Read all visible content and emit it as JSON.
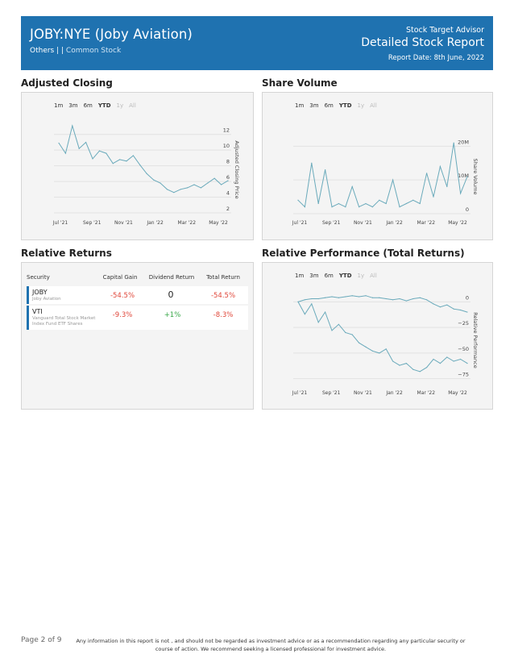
{
  "header": {
    "ticker": "JOBY:NYE (Joby Aviation)",
    "category": "Others",
    "separator": " | | ",
    "type": "Common Stock",
    "brand": "Stock Target Advisor",
    "title": "Detailed Stock Report",
    "date": "Report Date: 8th June, 2022"
  },
  "sections": {
    "adjusted_closing": "Adjusted Closing",
    "share_volume": "Share Volume",
    "relative_returns": "Relative Returns",
    "relative_performance": "Relative Performance (Total Returns)"
  },
  "range_buttons": [
    {
      "label": "1m",
      "state": "normal"
    },
    {
      "label": "3m",
      "state": "normal"
    },
    {
      "label": "6m",
      "state": "normal"
    },
    {
      "label": "YTD",
      "state": "selected"
    },
    {
      "label": "1y",
      "state": "disabled"
    },
    {
      "label": "All",
      "state": "disabled"
    }
  ],
  "returns_table": {
    "headers": [
      "Security",
      "Capital Gain",
      "Dividend Return",
      "Total Return"
    ],
    "rows": [
      {
        "symbol": "JOBY",
        "name": "Joby Aviation",
        "capital_gain": "-54.5%",
        "dividend_return": "0",
        "total_return": "-54.5%"
      },
      {
        "symbol": "VTI",
        "name": "Vanguard Total Stock Market Index Fund ETF Shares",
        "capital_gain": "-9.3%",
        "dividend_return": "+1%",
        "total_return": "-8.3%"
      }
    ]
  },
  "chart_data": [
    {
      "type": "line",
      "title": "Adjusted Closing",
      "ylabel": "Adjusted Closing Price",
      "xticks": [
        "Jul '21",
        "Sep '21",
        "Nov '21",
        "Jan '22",
        "Mar '22",
        "May '22"
      ],
      "yticks": [
        "2",
        "4",
        "6",
        "8",
        "10",
        "12"
      ],
      "ylim": [
        2,
        13
      ],
      "color": "#6aaabb",
      "x": [
        0,
        2,
        4,
        6,
        8,
        10,
        12,
        14,
        16,
        18,
        20,
        22,
        24,
        26,
        28,
        30,
        32,
        34,
        36,
        38,
        40,
        42,
        44,
        46,
        48,
        50
      ],
      "values": [
        10.9,
        9.6,
        13.1,
        10.2,
        11.0,
        8.9,
        9.9,
        9.6,
        8.3,
        8.8,
        8.6,
        9.3,
        8.1,
        7.0,
        6.2,
        5.8,
        5.0,
        4.6,
        5.0,
        5.2,
        5.6,
        5.2,
        5.8,
        6.4,
        5.6,
        6.1
      ]
    },
    {
      "type": "line",
      "title": "Share Volume",
      "ylabel": "Share Volume",
      "xticks": [
        "Jul '21",
        "Sep '21",
        "Nov '21",
        "Jan '22",
        "Mar '22",
        "May '22"
      ],
      "yticks": [
        "0",
        "10M",
        "20M"
      ],
      "ylim": [
        0,
        22
      ],
      "color": "#6aaabb",
      "x": [
        0,
        2,
        4,
        6,
        8,
        10,
        12,
        14,
        16,
        18,
        20,
        22,
        24,
        26,
        28,
        30,
        32,
        34,
        36,
        38,
        40,
        42,
        44,
        46,
        48,
        50
      ],
      "values": [
        4,
        2,
        15,
        3,
        13,
        2,
        3,
        2,
        8,
        2,
        3,
        2,
        4,
        3,
        10,
        2,
        3,
        4,
        3,
        12,
        5,
        14,
        8,
        21,
        6,
        11
      ]
    },
    {
      "type": "line",
      "title": "Relative Performance (Total Returns)",
      "ylabel": "Relative Performance",
      "xticks": [
        "Jul '21",
        "Sep '21",
        "Nov '21",
        "Jan '22",
        "Mar '22",
        "May '22"
      ],
      "yticks": [
        "0",
        "−25",
        "−50",
        "−75"
      ],
      "ylim": [
        -80,
        5
      ],
      "color": "#6aaabb",
      "x": [
        0,
        2,
        4,
        6,
        8,
        10,
        12,
        14,
        16,
        18,
        20,
        22,
        24,
        26,
        28,
        30,
        32,
        34,
        36,
        38,
        40,
        42,
        44,
        46,
        48,
        50
      ],
      "series": [
        {
          "name": "JOBY",
          "values": [
            0,
            -12,
            -2,
            -20,
            -10,
            -28,
            -22,
            -30,
            -32,
            -40,
            -44,
            -48,
            -50,
            -46,
            -58,
            -62,
            -60,
            -66,
            -68,
            -64,
            -56,
            -60,
            -54,
            -58,
            -56,
            -60
          ]
        },
        {
          "name": "VTI",
          "values": [
            0,
            2,
            3,
            3,
            4,
            5,
            4,
            5,
            6,
            5,
            6,
            4,
            4,
            3,
            2,
            3,
            1,
            3,
            4,
            2,
            -2,
            -5,
            -3,
            -7,
            -8,
            -10
          ]
        }
      ]
    }
  ],
  "footer": {
    "page": "Page 2 of 9",
    "disclaimer": "Any information in this report is not , and should not be regarded as investment advice or as a recommendation regarding any particular security or course of action. We recommend seeking a licensed professional for investment advice."
  }
}
